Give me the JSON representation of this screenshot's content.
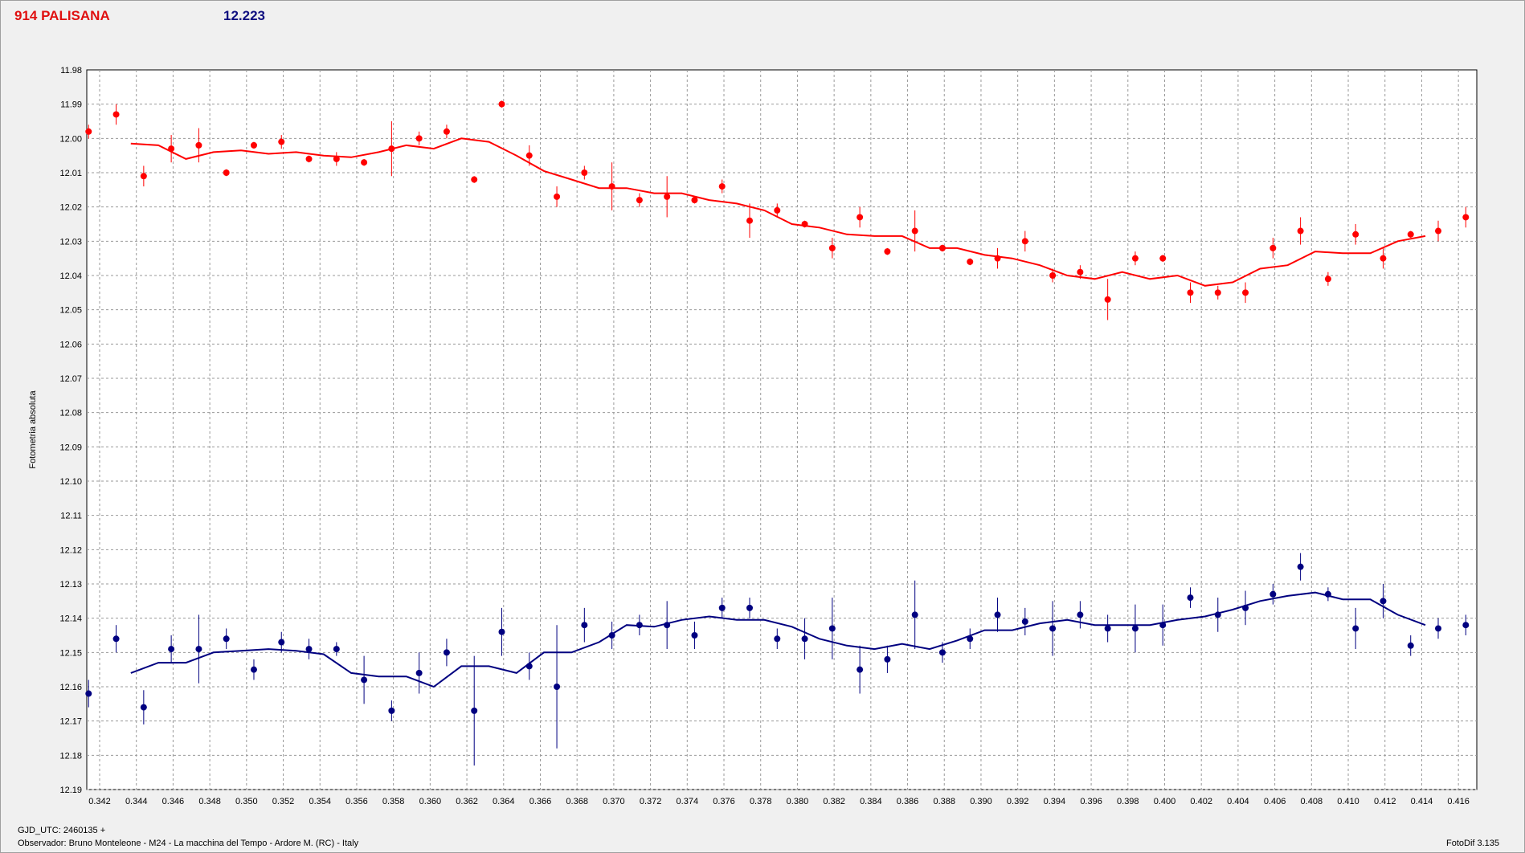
{
  "header": {
    "title": "914 PALISANA",
    "value": "12.223"
  },
  "ylabel": "Fotometria absoluta",
  "footer": {
    "gjd": "GJD_UTC: 2460135 +",
    "observer": "Observador: Bruno Monteleone - M24 - La macchina del Tempo - Ardore M. (RC) - Italy",
    "version": "FotoDif 3.135"
  },
  "chart_data": {
    "type": "scatter",
    "xlim": [
      0.3413,
      0.417
    ],
    "ylim": [
      11.98,
      12.19
    ],
    "y_inverted": true,
    "grid": true,
    "x_ticks": [
      "0.342",
      "0.344",
      "0.346",
      "0.348",
      "0.350",
      "0.352",
      "0.354",
      "0.356",
      "0.358",
      "0.360",
      "0.362",
      "0.364",
      "0.366",
      "0.368",
      "0.370",
      "0.372",
      "0.374",
      "0.376",
      "0.378",
      "0.380",
      "0.382",
      "0.384",
      "0.386",
      "0.388",
      "0.390",
      "0.392",
      "0.394",
      "0.396",
      "0.398",
      "0.400",
      "0.402",
      "0.404",
      "0.406",
      "0.408",
      "0.410",
      "0.412",
      "0.414",
      "0.416"
    ],
    "y_ticks": [
      "11.98",
      "11.99",
      "12.00",
      "12.01",
      "12.02",
      "12.03",
      "12.04",
      "12.05",
      "12.06",
      "12.07",
      "12.08",
      "12.09",
      "12.10",
      "12.11",
      "12.12",
      "12.13",
      "12.14",
      "12.15",
      "12.16",
      "12.17",
      "12.18",
      "12.19"
    ],
    "series": [
      {
        "color": "#ff0000",
        "x": [
          0.3414,
          0.3429,
          0.3444,
          0.3459,
          0.3474,
          0.3489,
          0.3504,
          0.3519,
          0.3534,
          0.3549,
          0.3564,
          0.3579,
          0.3594,
          0.3609,
          0.3624,
          0.3639,
          0.3654,
          0.3669,
          0.3684,
          0.3699,
          0.3714,
          0.3729,
          0.3744,
          0.3759,
          0.3774,
          0.3789,
          0.3804,
          0.3819,
          0.3834,
          0.3849,
          0.3864,
          0.3879,
          0.3894,
          0.3909,
          0.3924,
          0.3939,
          0.3954,
          0.3969,
          0.3984,
          0.3999,
          0.4014,
          0.4029,
          0.4044,
          0.4059,
          0.4074,
          0.4089,
          0.4104,
          0.4119,
          0.4134,
          0.4149,
          0.4164
        ],
        "y": [
          11.998,
          11.993,
          12.011,
          12.003,
          12.002,
          12.01,
          12.002,
          12.001,
          12.006,
          12.006,
          12.007,
          12.003,
          12.0,
          11.998,
          12.012,
          11.99,
          12.005,
          12.017,
          12.01,
          12.014,
          12.018,
          12.017,
          12.018,
          12.014,
          12.024,
          12.021,
          12.025,
          12.032,
          12.023,
          12.033,
          12.027,
          12.032,
          12.036,
          12.035,
          12.03,
          12.04,
          12.039,
          12.047,
          12.035,
          12.035,
          12.045,
          12.045,
          12.045,
          12.032,
          12.027,
          12.041,
          12.028,
          12.035,
          12.028,
          12.027,
          12.023
        ],
        "yerr": [
          0.002,
          0.003,
          0.003,
          0.004,
          0.005,
          0.001,
          0.001,
          0.002,
          0.001,
          0.002,
          0.001,
          0.008,
          0.002,
          0.002,
          0.001,
          0.001,
          0.003,
          0.003,
          0.002,
          0.007,
          0.002,
          0.006,
          0.001,
          0.002,
          0.005,
          0.002,
          0.001,
          0.003,
          0.003,
          0.001,
          0.006,
          0.001,
          0.001,
          0.003,
          0.003,
          0.002,
          0.002,
          0.006,
          0.002,
          0.001,
          0.003,
          0.002,
          0.003,
          0.003,
          0.004,
          0.002,
          0.003,
          0.003,
          0.001,
          0.003,
          0.003
        ],
        "trend_x": [
          0.3437,
          0.3452,
          0.3467,
          0.3482,
          0.3497,
          0.3512,
          0.3527,
          0.3542,
          0.3557,
          0.3572,
          0.3587,
          0.3602,
          0.3617,
          0.3632,
          0.3647,
          0.3662,
          0.3677,
          0.3692,
          0.3707,
          0.3722,
          0.3737,
          0.3752,
          0.3767,
          0.3782,
          0.3797,
          0.3812,
          0.3827,
          0.3842,
          0.3857,
          0.3872,
          0.3887,
          0.3902,
          0.3917,
          0.3932,
          0.3947,
          0.3962,
          0.3977,
          0.3992,
          0.4007,
          0.4022,
          0.4037,
          0.4052,
          0.4067,
          0.4082,
          0.4097,
          0.4112,
          0.4127,
          0.4142
        ],
        "trend_y": [
          12.0015,
          12.002,
          12.006,
          12.004,
          12.0035,
          12.0045,
          12.004,
          12.005,
          12.0055,
          12.004,
          12.002,
          12.003,
          12.0,
          12.001,
          12.005,
          12.0095,
          12.012,
          12.0145,
          12.0145,
          12.016,
          12.016,
          12.018,
          12.019,
          12.021,
          12.025,
          12.026,
          12.028,
          12.0285,
          12.0285,
          12.032,
          12.032,
          12.034,
          12.035,
          12.037,
          12.04,
          12.041,
          12.039,
          12.041,
          12.04,
          12.043,
          12.042,
          12.038,
          12.037,
          12.033,
          12.0335,
          12.0335,
          12.03,
          12.0285
        ]
      },
      {
        "color": "#000080",
        "x": [
          0.3414,
          0.3429,
          0.3444,
          0.3459,
          0.3474,
          0.3489,
          0.3504,
          0.3519,
          0.3534,
          0.3549,
          0.3564,
          0.3579,
          0.3594,
          0.3609,
          0.3624,
          0.3639,
          0.3654,
          0.3669,
          0.3684,
          0.3699,
          0.3714,
          0.3729,
          0.3744,
          0.3759,
          0.3774,
          0.3789,
          0.3804,
          0.3819,
          0.3834,
          0.3849,
          0.3864,
          0.3879,
          0.3894,
          0.3909,
          0.3924,
          0.3939,
          0.3954,
          0.3969,
          0.3984,
          0.3999,
          0.4014,
          0.4029,
          0.4044,
          0.4059,
          0.4074,
          0.4089,
          0.4104,
          0.4119,
          0.4134,
          0.4149,
          0.4164
        ],
        "y": [
          12.162,
          12.146,
          12.166,
          12.149,
          12.149,
          12.146,
          12.155,
          12.147,
          12.149,
          12.149,
          12.158,
          12.167,
          12.156,
          12.15,
          12.167,
          12.144,
          12.154,
          12.16,
          12.142,
          12.145,
          12.142,
          12.142,
          12.145,
          12.137,
          12.137,
          12.146,
          12.146,
          12.143,
          12.155,
          12.152,
          12.139,
          12.15,
          12.146,
          12.139,
          12.141,
          12.143,
          12.139,
          12.143,
          12.143,
          12.142,
          12.134,
          12.139,
          12.137,
          12.133,
          12.125,
          12.133,
          12.143,
          12.135,
          12.148,
          12.143,
          12.142
        ],
        "yerr": [
          0.004,
          0.004,
          0.005,
          0.004,
          0.01,
          0.003,
          0.003,
          0.003,
          0.003,
          0.002,
          0.007,
          0.003,
          0.006,
          0.004,
          0.016,
          0.007,
          0.004,
          0.018,
          0.005,
          0.004,
          0.003,
          0.007,
          0.004,
          0.003,
          0.003,
          0.003,
          0.006,
          0.009,
          0.007,
          0.004,
          0.01,
          0.003,
          0.003,
          0.005,
          0.004,
          0.008,
          0.004,
          0.004,
          0.007,
          0.006,
          0.003,
          0.005,
          0.005,
          0.003,
          0.004,
          0.002,
          0.006,
          0.005,
          0.003,
          0.003,
          0.003
        ],
        "trend_x": [
          0.3437,
          0.3452,
          0.3467,
          0.3482,
          0.3497,
          0.3512,
          0.3527,
          0.3542,
          0.3557,
          0.3572,
          0.3587,
          0.3602,
          0.3617,
          0.3632,
          0.3647,
          0.3662,
          0.3677,
          0.3692,
          0.3707,
          0.3722,
          0.3737,
          0.3752,
          0.3767,
          0.3782,
          0.3797,
          0.3812,
          0.3827,
          0.3842,
          0.3857,
          0.3872,
          0.3887,
          0.3902,
          0.3917,
          0.3932,
          0.3947,
          0.3962,
          0.3977,
          0.3992,
          0.4007,
          0.4022,
          0.4037,
          0.4052,
          0.4067,
          0.4082,
          0.4097,
          0.4112,
          0.4127,
          0.4142
        ],
        "trend_y": [
          12.156,
          12.153,
          12.153,
          12.15,
          12.1495,
          12.149,
          12.1495,
          12.1505,
          12.156,
          12.157,
          12.157,
          12.16,
          12.154,
          12.154,
          12.156,
          12.15,
          12.15,
          12.147,
          12.142,
          12.1425,
          12.1405,
          12.1395,
          12.1405,
          12.1405,
          12.1425,
          12.146,
          12.148,
          12.149,
          12.1475,
          12.149,
          12.1465,
          12.1435,
          12.1435,
          12.1415,
          12.1405,
          12.142,
          12.142,
          12.142,
          12.1405,
          12.1395,
          12.1375,
          12.135,
          12.1335,
          12.1325,
          12.1345,
          12.1345,
          12.139,
          12.142
        ]
      }
    ]
  }
}
